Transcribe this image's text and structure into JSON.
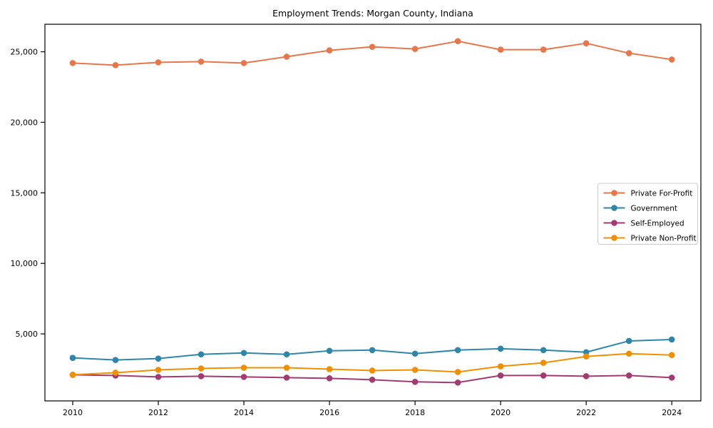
{
  "chart_data": {
    "type": "line",
    "title": "Employment Trends: Morgan County, Indiana",
    "xlabel": "",
    "ylabel": "",
    "x": [
      2010,
      2011,
      2012,
      2013,
      2014,
      2015,
      2016,
      2017,
      2018,
      2019,
      2020,
      2021,
      2022,
      2023,
      2024
    ],
    "series": [
      {
        "name": "Private For-Profit",
        "color": "#E8764B",
        "values": [
          24200,
          24050,
          24250,
          24300,
          24200,
          24650,
          25100,
          25350,
          25200,
          25750,
          25150,
          25150,
          25600,
          24900,
          24450
        ]
      },
      {
        "name": "Government",
        "color": "#2E86AB",
        "values": [
          3300,
          3150,
          3250,
          3550,
          3650,
          3550,
          3800,
          3850,
          3600,
          3850,
          3950,
          3850,
          3700,
          4500,
          4600
        ]
      },
      {
        "name": "Self-Employed",
        "color": "#A23B72",
        "values": [
          2100,
          2050,
          1950,
          2000,
          1950,
          1900,
          1850,
          1750,
          1600,
          1550,
          2050,
          2050,
          2000,
          2050,
          1900
        ]
      },
      {
        "name": "Private Non-Profit",
        "color": "#F18F01",
        "values": [
          2100,
          2250,
          2450,
          2550,
          2600,
          2600,
          2500,
          2400,
          2450,
          2300,
          2700,
          2950,
          3400,
          3600,
          3500
        ]
      }
    ],
    "xticks": [
      2010,
      2012,
      2014,
      2016,
      2018,
      2020,
      2022,
      2024
    ],
    "yticks": [
      5000,
      10000,
      15000,
      20000,
      25000
    ],
    "ytick_labels": [
      "5,000",
      "10,000",
      "15,000",
      "20,000",
      "25,000"
    ],
    "xlim": [
      2009.35,
      2024.68
    ],
    "ylim": [
      250,
      26950
    ],
    "grid": false,
    "legend_position": "center right",
    "marker": "o",
    "frame_color": "#000000",
    "legend_border_color": "#cccccc",
    "background_color": "#ffffff"
  }
}
